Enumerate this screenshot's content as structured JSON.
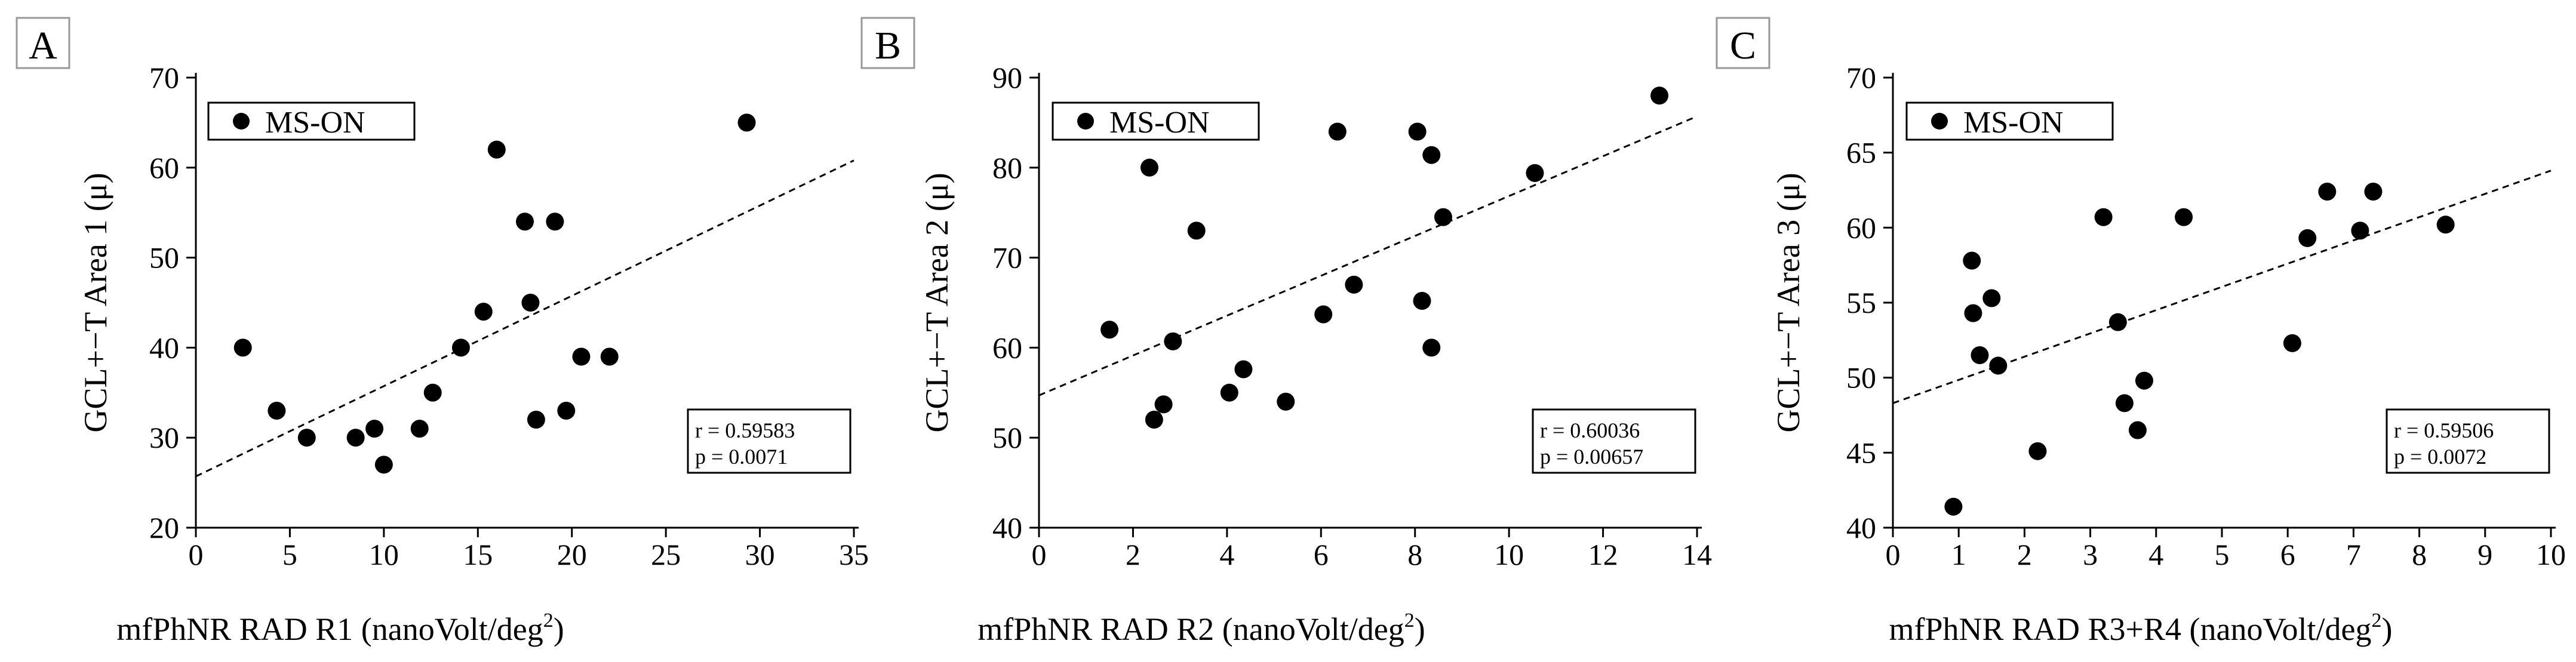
{
  "chart_data": [
    {
      "type": "scatter",
      "panel_label": "A",
      "xlabel_main": "mfPhNR RAD R1 (nanoVolt/deg",
      "xlabel_sup": "2",
      "xlabel_end": ")",
      "ylabel": "GCL+−T Area 1 (μ)",
      "xlim": [
        0,
        35
      ],
      "ylim": [
        20,
        70
      ],
      "xticks": [
        0,
        5,
        10,
        15,
        20,
        25,
        30,
        35
      ],
      "yticks": [
        20,
        30,
        40,
        50,
        60,
        70
      ],
      "legend": "MS-ON",
      "stats": [
        "r = 0.59583",
        "p = 0.0071"
      ],
      "fit_line": {
        "x": [
          0,
          35
        ],
        "y": [
          25.7,
          60.8
        ]
      },
      "series": [
        {
          "name": "MS-ON",
          "x": [
            2.5,
            4.3,
            5.9,
            8.5,
            9.5,
            10.0,
            11.9,
            12.6,
            14.1,
            15.3,
            16.0,
            17.5,
            17.8,
            18.1,
            19.1,
            19.7,
            20.5,
            22.0,
            29.3
          ],
          "y": [
            40,
            33,
            30,
            30,
            31,
            27,
            31,
            35,
            40,
            44,
            62,
            54,
            45,
            32,
            54,
            33,
            39,
            39,
            65
          ]
        }
      ]
    },
    {
      "type": "scatter",
      "panel_label": "B",
      "xlabel_main": "mfPhNR RAD R2 (nanoVolt/deg",
      "xlabel_sup": "2",
      "xlabel_end": ")",
      "ylabel": "GCL+−T Area 2 (μ)",
      "xlim": [
        0,
        14
      ],
      "ylim": [
        40,
        90
      ],
      "xticks": [
        0,
        2,
        4,
        6,
        8,
        10,
        12,
        14
      ],
      "yticks": [
        40,
        50,
        60,
        70,
        80,
        90
      ],
      "legend": "MS-ON",
      "stats": [
        "r = 0.60036",
        "p = 0.00657"
      ],
      "fit_line": {
        "x": [
          0,
          14
        ],
        "y": [
          54.7,
          85.7
        ]
      },
      "series": [
        {
          "name": "MS-ON",
          "x": [
            1.5,
            2.35,
            2.45,
            2.65,
            2.85,
            3.35,
            4.05,
            4.35,
            5.25,
            6.05,
            6.35,
            6.7,
            8.05,
            8.15,
            8.35,
            8.35,
            8.6,
            10.55,
            13.2
          ],
          "y": [
            62,
            80,
            52,
            53.7,
            60.7,
            73,
            55,
            57.6,
            54,
            63.7,
            84,
            67,
            84,
            65.2,
            81.4,
            60,
            74.5,
            79.4,
            88
          ]
        }
      ]
    },
    {
      "type": "scatter",
      "panel_label": "C",
      "xlabel_main": "mfPhNR RAD R3+R4 (nanoVolt/deg",
      "xlabel_sup": "2",
      "xlabel_end": ")",
      "ylabel": "GCL+−T Area 3 (μ)",
      "xlim": [
        0,
        10
      ],
      "ylim": [
        40,
        70
      ],
      "xticks": [
        0,
        1,
        2,
        3,
        4,
        5,
        6,
        7,
        8,
        9,
        10
      ],
      "yticks": [
        40,
        45,
        50,
        55,
        60,
        65,
        70
      ],
      "legend": "MS-ON",
      "stats": [
        "r = 0.59506",
        "p = 0.0072"
      ],
      "fit_line": {
        "x": [
          0,
          10
        ],
        "y": [
          48.3,
          63.8
        ]
      },
      "series": [
        {
          "name": "MS-ON",
          "x": [
            0.92,
            1.2,
            1.22,
            1.32,
            1.5,
            1.6,
            2.2,
            3.2,
            3.42,
            3.52,
            3.72,
            3.82,
            4.42,
            6.07,
            6.3,
            6.6,
            7.1,
            7.3,
            8.4
          ],
          "y": [
            41.4,
            57.8,
            54.3,
            51.5,
            55.3,
            50.8,
            45.1,
            60.7,
            53.7,
            48.3,
            46.5,
            49.8,
            60.7,
            52.3,
            59.3,
            62.4,
            59.8,
            62.4,
            60.2
          ]
        }
      ]
    }
  ]
}
